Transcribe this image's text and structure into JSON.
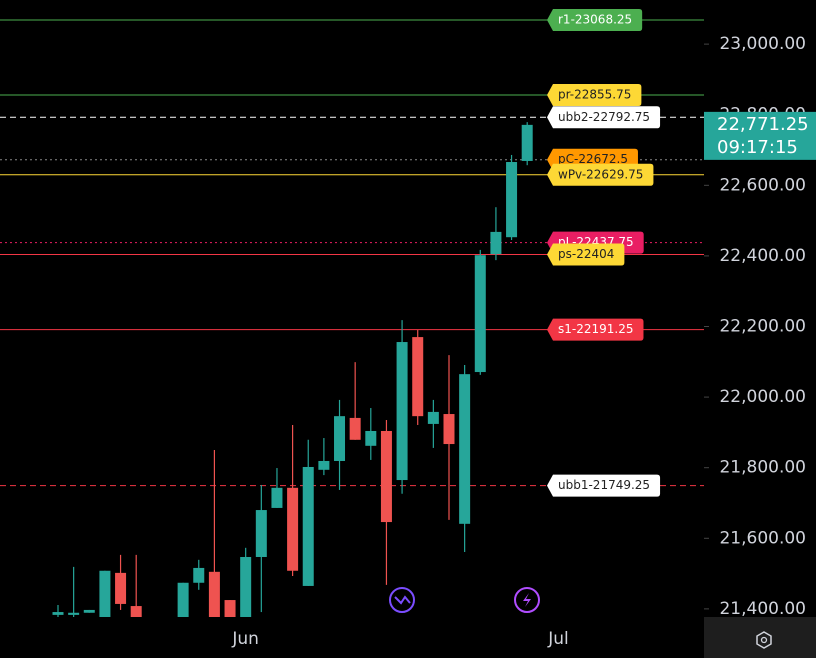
{
  "chart_data": {
    "type": "candlestick",
    "up_color": "#26a69a",
    "down_color": "#ef5350",
    "open": [
      21383,
      21383,
      21389,
      21369,
      21502,
      21408,
      null,
      null,
      21369,
      21474,
      21505,
      21425,
      21369,
      21547,
      21686,
      21743,
      21465,
      21794,
      21819,
      21941,
      21862,
      21904,
      21765,
      22170,
      21924,
      21952,
      21641,
      22071,
      22405,
      22453,
      22669
    ],
    "high": [
      21411,
      21519,
      21397,
      21508,
      21553,
      21553,
      null,
      null,
      21474,
      21539,
      21850,
      21425,
      21573,
      21751,
      21799,
      21921,
      21879,
      21884,
      21992,
      22099,
      21969,
      21935,
      22218,
      22190,
      21992,
      22119,
      22091,
      22417,
      22538,
      22686,
      22779
    ],
    "low": [
      21377,
      21377,
      21389,
      21369,
      21397,
      21369,
      null,
      null,
      21369,
      21454,
      21369,
      21369,
      21369,
      21391,
      21686,
      21493,
      21465,
      21779,
      21737,
      21879,
      21822,
      21468,
      21726,
      21921,
      21856,
      21652,
      21561,
      22063,
      22388,
      22445,
      22657
    ],
    "close": [
      21391,
      21389,
      21397,
      21508,
      21414,
      21369,
      null,
      null,
      21474,
      21516,
      21369,
      21369,
      21547,
      21680,
      21743,
      21508,
      21802,
      21819,
      21946,
      21879,
      21904,
      21646,
      22156,
      21946,
      21958,
      21867,
      22065,
      22402,
      22468,
      22666,
      22771.25
    ],
    "ylim": [
      21377,
      23125
    ],
    "yticks": [
      {
        "value": 21400,
        "label": "21,400.00"
      },
      {
        "value": 21600,
        "label": "21,600.00"
      },
      {
        "value": 21800,
        "label": "21,800.00"
      },
      {
        "value": 22000,
        "label": "22,000.00"
      },
      {
        "value": 22200,
        "label": "22,200.00"
      },
      {
        "value": 22400,
        "label": "22,400.00"
      },
      {
        "value": 22600,
        "label": "22,600.00"
      },
      {
        "value": 22800,
        "label": "22,800.00"
      },
      {
        "value": 23000,
        "label": "23,000.00"
      }
    ],
    "xticks": [
      {
        "value": 12,
        "label": "Jun"
      },
      {
        "value": 32,
        "label": "Jul"
      }
    ],
    "levels": [
      {
        "value": 23068.25,
        "label": "r1-23068.25",
        "line_color": "#4caf50",
        "label_color": "#4caf50",
        "text_color": "#ffffff",
        "style": "solid"
      },
      {
        "value": 22855.75,
        "label": "pr-22855.75",
        "line_color": "#4caf50",
        "label_color": "#fdd835",
        "text_color": "#222222",
        "style": "solid"
      },
      {
        "value": 22792.75,
        "label": "ubb2-22792.75",
        "line_color": "#ffffff",
        "label_color": "#ffffff",
        "text_color": "#222222",
        "style": "dashed"
      },
      {
        "value": 22672.5,
        "label": "pC-22672.5",
        "line_color": "#888888",
        "label_color": "#ff9800",
        "text_color": "#222222",
        "style": "dotted"
      },
      {
        "value": 22629.75,
        "label": "wPv-22629.75",
        "line_color": "#fdd835",
        "label_color": "#fdd835",
        "text_color": "#222222",
        "style": "solid"
      },
      {
        "value": 22437.75,
        "label": "pL-22437.75",
        "line_color": "#e91e63",
        "label_color": "#e91e63",
        "text_color": "#ffffff",
        "style": "dotted"
      },
      {
        "value": 22404,
        "label": "ps-22404",
        "line_color": "#f23645",
        "label_color": "#fdd835",
        "text_color": "#222222",
        "style": "solid"
      },
      {
        "value": 22191.25,
        "label": "s1-22191.25",
        "line_color": "#f23645",
        "label_color": "#f23645",
        "text_color": "#ffffff",
        "style": "solid"
      },
      {
        "value": 21749.25,
        "label": "ubb1-21749.25",
        "line_color": "#f23645",
        "label_color": "#ffffff",
        "text_color": "#222222",
        "style": "dashed"
      }
    ],
    "last_price": {
      "value": 22771.25,
      "label": "22,771.25"
    },
    "last_time": "09:17:15"
  }
}
